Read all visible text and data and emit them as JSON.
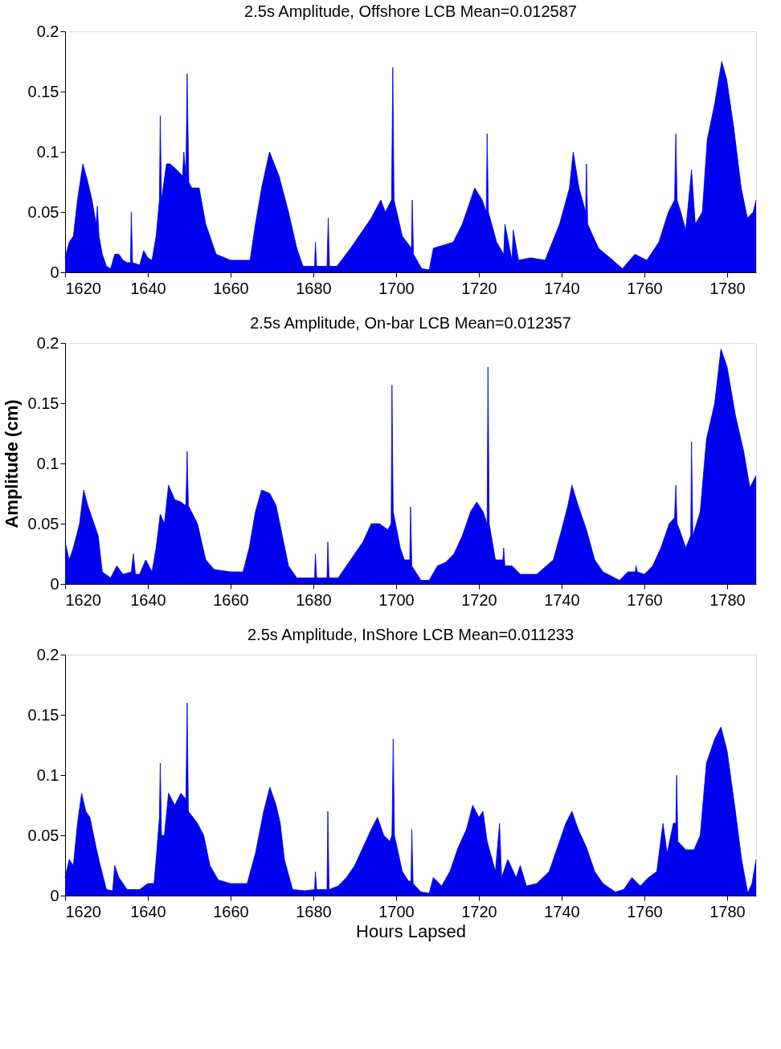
{
  "chart_data": [
    {
      "type": "area",
      "title": "2.5s Amplitude, Offshore LCB Mean=0.012587",
      "color": "#0000f0",
      "grid": false,
      "xlim": [
        1620,
        1787
      ],
      "ylim": [
        0,
        0.2
      ],
      "xticks": [
        1620,
        1640,
        1660,
        1680,
        1700,
        1720,
        1740,
        1760,
        1780
      ],
      "yticks": [
        0,
        0.05,
        0.1,
        0.15,
        0.2
      ],
      "x": [
        1620,
        1621,
        1622,
        1623,
        1624.3,
        1625.5,
        1626.5,
        1627.5,
        1627.8,
        1628.2,
        1629,
        1630,
        1631,
        1632,
        1633,
        1634,
        1635,
        1635.8,
        1636,
        1636.3,
        1638,
        1639,
        1640,
        1641,
        1642,
        1642.8,
        1643,
        1643.3,
        1644.5,
        1645.4,
        1647,
        1648.4,
        1648.7,
        1649.2,
        1649.5,
        1649.9,
        1650.6,
        1652.4,
        1654,
        1656.5,
        1660,
        1664.7,
        1666,
        1667.5,
        1669.4,
        1671.7,
        1674,
        1676,
        1677.5,
        1680.3,
        1680.5,
        1680.8,
        1683.3,
        1683.6,
        1683.9,
        1685.7,
        1689,
        1692,
        1694,
        1696.3,
        1697.4,
        1698.9,
        1699.2,
        1699.5,
        1701.5,
        1703.7,
        1703.9,
        1704.2,
        1706.2,
        1708,
        1709,
        1713.8,
        1716,
        1719,
        1720.8,
        1721.8,
        1722,
        1722.3,
        1724.3,
        1726,
        1726.3,
        1728,
        1728.3,
        1729.6,
        1732.5,
        1736,
        1739.5,
        1741.9,
        1742.8,
        1744.2,
        1745.8,
        1746,
        1746.3,
        1748.9,
        1752.4,
        1754.7,
        1757.7,
        1760.6,
        1763.5,
        1765.8,
        1767.3,
        1767.6,
        1767.9,
        1768.8,
        1770,
        1771.4,
        1772.3,
        1774,
        1775.2,
        1777,
        1778.7,
        1779.9,
        1781.6,
        1783.4,
        1784.9,
        1786.3,
        1787
      ],
      "values": [
        0.012,
        0.025,
        0.03,
        0.06,
        0.09,
        0.075,
        0.06,
        0.04,
        0.055,
        0.03,
        0.015,
        0.005,
        0.003,
        0.015,
        0.015,
        0.01,
        0.008,
        0.008,
        0.05,
        0.008,
        0.006,
        0.018,
        0.012,
        0.01,
        0.03,
        0.06,
        0.13,
        0.06,
        0.09,
        0.09,
        0.085,
        0.08,
        0.1,
        0.08,
        0.165,
        0.075,
        0.07,
        0.07,
        0.04,
        0.015,
        0.01,
        0.01,
        0.04,
        0.07,
        0.1,
        0.08,
        0.05,
        0.02,
        0.005,
        0.005,
        0.025,
        0.005,
        0.005,
        0.045,
        0.005,
        0.005,
        0.02,
        0.035,
        0.045,
        0.06,
        0.05,
        0.06,
        0.17,
        0.06,
        0.03,
        0.02,
        0.06,
        0.015,
        0.003,
        0.002,
        0.02,
        0.025,
        0.04,
        0.07,
        0.06,
        0.05,
        0.115,
        0.05,
        0.025,
        0.015,
        0.04,
        0.01,
        0.035,
        0.01,
        0.012,
        0.01,
        0.04,
        0.07,
        0.1,
        0.07,
        0.05,
        0.09,
        0.04,
        0.02,
        0.01,
        0.003,
        0.015,
        0.01,
        0.025,
        0.05,
        0.06,
        0.115,
        0.06,
        0.05,
        0.035,
        0.085,
        0.04,
        0.05,
        0.11,
        0.14,
        0.175,
        0.16,
        0.12,
        0.07,
        0.045,
        0.05,
        0.06
      ]
    },
    {
      "type": "area",
      "title": "2.5s Amplitude, On-bar LCB Mean=0.012357",
      "ylabel": "Amplitude (cm)",
      "color": "#0000f0",
      "grid": false,
      "xlim": [
        1620,
        1787
      ],
      "ylim": [
        0,
        0.2
      ],
      "xticks": [
        1620,
        1640,
        1660,
        1680,
        1700,
        1720,
        1740,
        1760,
        1780
      ],
      "yticks": [
        0,
        0.05,
        0.1,
        0.15,
        0.2
      ],
      "x": [
        1620,
        1621,
        1622,
        1623.5,
        1624.5,
        1625.5,
        1627,
        1628,
        1629,
        1631,
        1632.5,
        1634,
        1636,
        1636.5,
        1637,
        1638,
        1639.5,
        1641,
        1642,
        1643,
        1644,
        1645,
        1646.5,
        1648,
        1649.2,
        1649.5,
        1649.8,
        1652,
        1654,
        1656,
        1660,
        1663,
        1664.5,
        1666,
        1667.5,
        1669.5,
        1671,
        1672.5,
        1674,
        1676,
        1680.3,
        1680.5,
        1680.8,
        1683.3,
        1683.5,
        1683.8,
        1686,
        1688,
        1690,
        1692,
        1694,
        1696,
        1698,
        1698.8,
        1699,
        1699.3,
        1701,
        1702,
        1703.3,
        1703.5,
        1703.8,
        1706,
        1708,
        1710,
        1712,
        1714,
        1716,
        1718,
        1719.5,
        1721,
        1722,
        1722.2,
        1722.5,
        1724,
        1725.8,
        1726,
        1726.3,
        1728,
        1730,
        1734,
        1738,
        1740,
        1741.5,
        1742.5,
        1744,
        1746,
        1748,
        1750,
        1754,
        1756,
        1757.8,
        1758,
        1758.3,
        1760,
        1762,
        1764,
        1766,
        1767.3,
        1767.6,
        1767.9,
        1768.5,
        1770,
        1771.2,
        1771.4,
        1771.7,
        1773.5,
        1775,
        1777,
        1778.5,
        1780,
        1782,
        1784,
        1785.5,
        1787
      ],
      "values": [
        0.035,
        0.02,
        0.03,
        0.05,
        0.078,
        0.065,
        0.05,
        0.04,
        0.01,
        0.005,
        0.015,
        0.008,
        0.01,
        0.025,
        0.008,
        0.008,
        0.02,
        0.01,
        0.03,
        0.058,
        0.05,
        0.082,
        0.07,
        0.068,
        0.065,
        0.11,
        0.065,
        0.05,
        0.02,
        0.012,
        0.01,
        0.01,
        0.03,
        0.06,
        0.078,
        0.075,
        0.065,
        0.04,
        0.015,
        0.005,
        0.005,
        0.025,
        0.005,
        0.005,
        0.035,
        0.005,
        0.005,
        0.015,
        0.025,
        0.035,
        0.05,
        0.05,
        0.045,
        0.05,
        0.165,
        0.06,
        0.03,
        0.02,
        0.02,
        0.064,
        0.015,
        0.003,
        0.003,
        0.015,
        0.018,
        0.025,
        0.04,
        0.06,
        0.068,
        0.06,
        0.05,
        0.18,
        0.05,
        0.02,
        0.02,
        0.03,
        0.015,
        0.015,
        0.008,
        0.008,
        0.02,
        0.045,
        0.065,
        0.082,
        0.065,
        0.045,
        0.02,
        0.01,
        0.003,
        0.01,
        0.01,
        0.015,
        0.01,
        0.008,
        0.015,
        0.03,
        0.05,
        0.055,
        0.082,
        0.05,
        0.045,
        0.03,
        0.04,
        0.118,
        0.04,
        0.06,
        0.12,
        0.15,
        0.195,
        0.18,
        0.14,
        0.11,
        0.08,
        0.09
      ]
    },
    {
      "type": "area",
      "title": "2.5s Amplitude, InShore LCB Mean=0.011233",
      "xlabel": "Hours Lapsed",
      "color": "#0000f0",
      "grid": false,
      "xlim": [
        1620,
        1787
      ],
      "ylim": [
        0,
        0.2
      ],
      "xticks": [
        1620,
        1640,
        1660,
        1680,
        1700,
        1720,
        1740,
        1760,
        1780
      ],
      "yticks": [
        0,
        0.05,
        0.1,
        0.15,
        0.2
      ],
      "x": [
        1620,
        1621,
        1622,
        1623,
        1624,
        1625,
        1626,
        1627.5,
        1628.5,
        1630,
        1631.5,
        1632,
        1633,
        1635,
        1638,
        1640,
        1641.5,
        1642,
        1642.8,
        1643,
        1643.3,
        1644,
        1645,
        1646.5,
        1648,
        1649.2,
        1649.5,
        1649.8,
        1652,
        1653.5,
        1655,
        1657,
        1660,
        1664,
        1666,
        1668,
        1669.5,
        1671,
        1672,
        1673,
        1675,
        1678,
        1680.3,
        1680.5,
        1680.8,
        1683.3,
        1683.5,
        1683.8,
        1686,
        1688,
        1690,
        1692,
        1694,
        1695.5,
        1697,
        1698.5,
        1699,
        1699.3,
        1699.6,
        1701.5,
        1703,
        1703.6,
        1703.8,
        1704.1,
        1706,
        1708,
        1709,
        1711,
        1713,
        1715,
        1717,
        1718.5,
        1720,
        1721,
        1722,
        1724,
        1725,
        1725.5,
        1727,
        1729,
        1730,
        1731.5,
        1734,
        1737,
        1739,
        1741,
        1742.5,
        1744,
        1746,
        1748,
        1750,
        1753,
        1755,
        1757,
        1759,
        1761,
        1763,
        1764.5,
        1765.5,
        1767,
        1767.6,
        1767.8,
        1768.1,
        1770,
        1772,
        1773.5,
        1775,
        1777,
        1778.5,
        1780,
        1782,
        1783.5,
        1785,
        1786,
        1787
      ],
      "values": [
        0.015,
        0.03,
        0.025,
        0.06,
        0.085,
        0.07,
        0.065,
        0.04,
        0.025,
        0.005,
        0.004,
        0.025,
        0.015,
        0.005,
        0.005,
        0.01,
        0.01,
        0.03,
        0.065,
        0.11,
        0.05,
        0.05,
        0.085,
        0.075,
        0.085,
        0.08,
        0.16,
        0.07,
        0.06,
        0.05,
        0.025,
        0.013,
        0.01,
        0.01,
        0.035,
        0.07,
        0.09,
        0.075,
        0.06,
        0.03,
        0.005,
        0.004,
        0.005,
        0.02,
        0.005,
        0.005,
        0.07,
        0.005,
        0.008,
        0.015,
        0.025,
        0.04,
        0.055,
        0.065,
        0.05,
        0.045,
        0.05,
        0.13,
        0.05,
        0.02,
        0.012,
        0.012,
        0.055,
        0.01,
        0.003,
        0.002,
        0.015,
        0.008,
        0.02,
        0.04,
        0.055,
        0.075,
        0.065,
        0.07,
        0.045,
        0.02,
        0.06,
        0.015,
        0.03,
        0.015,
        0.025,
        0.008,
        0.01,
        0.02,
        0.04,
        0.06,
        0.07,
        0.055,
        0.04,
        0.02,
        0.01,
        0.003,
        0.005,
        0.015,
        0.008,
        0.015,
        0.02,
        0.06,
        0.035,
        0.06,
        0.06,
        0.1,
        0.045,
        0.038,
        0.038,
        0.05,
        0.11,
        0.13,
        0.14,
        0.12,
        0.07,
        0.03,
        0.002,
        0.01,
        0.03
      ]
    }
  ]
}
